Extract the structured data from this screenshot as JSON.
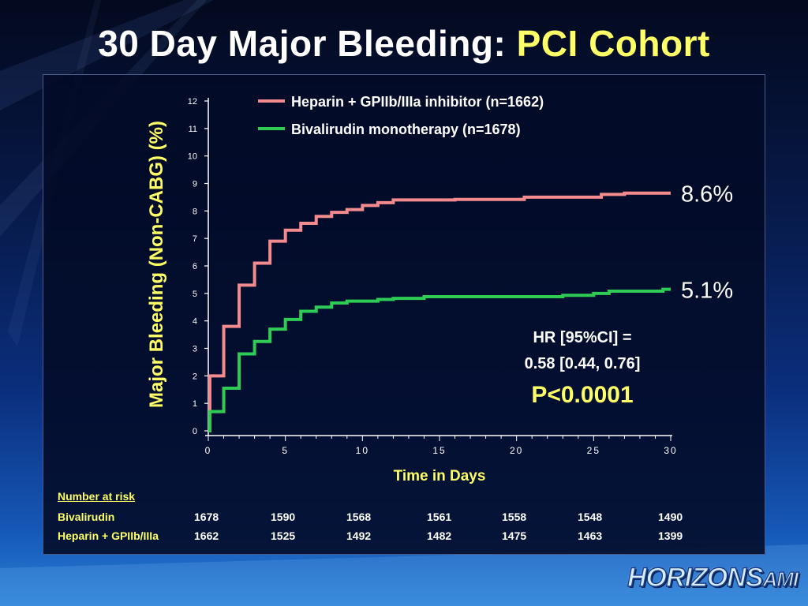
{
  "slide": {
    "title_main": "30 Day Major Bleeding:",
    "title_accent": "PCI Cohort"
  },
  "chart_data": {
    "type": "line",
    "subtype": "kaplan-meier step",
    "xlabel": "Time in Days",
    "ylabel": "Major Bleeding (Non-CABG) (%)",
    "xlim": [
      0,
      30
    ],
    "ylim": [
      0,
      12
    ],
    "x_ticks": [
      "0",
      "5",
      "10",
      "15",
      "20",
      "25",
      "30"
    ],
    "y_ticks": [
      "0",
      "1",
      "2",
      "3",
      "4",
      "5",
      "6",
      "7",
      "8",
      "9",
      "10",
      "11",
      "12"
    ],
    "grid": false,
    "legend_position": "top",
    "series": [
      {
        "name": "Heparin + GPIIb/IIIa inhibitor (n=1662)",
        "color": "#f28a8e",
        "end_label": "8.6%",
        "points": [
          [
            0,
            0
          ],
          [
            0.1,
            2.0
          ],
          [
            1,
            3.8
          ],
          [
            2,
            5.3
          ],
          [
            3,
            6.1
          ],
          [
            4,
            6.9
          ],
          [
            5,
            7.3
          ],
          [
            6,
            7.55
          ],
          [
            7,
            7.8
          ],
          [
            8,
            7.95
          ],
          [
            9,
            8.05
          ],
          [
            10,
            8.2
          ],
          [
            11,
            8.3
          ],
          [
            12,
            8.4
          ],
          [
            16,
            8.42
          ],
          [
            20.5,
            8.5
          ],
          [
            25.5,
            8.6
          ],
          [
            27,
            8.65
          ],
          [
            30,
            8.65
          ]
        ]
      },
      {
        "name": "Bivalirudin monotherapy (n=1678)",
        "color": "#2ecc55",
        "end_label": "5.1%",
        "points": [
          [
            0,
            0
          ],
          [
            0.1,
            0.7
          ],
          [
            1,
            1.55
          ],
          [
            2,
            2.8
          ],
          [
            3,
            3.25
          ],
          [
            4,
            3.7
          ],
          [
            5,
            4.05
          ],
          [
            6,
            4.35
          ],
          [
            7,
            4.5
          ],
          [
            8,
            4.65
          ],
          [
            9,
            4.72
          ],
          [
            11,
            4.78
          ],
          [
            12,
            4.82
          ],
          [
            14,
            4.88
          ],
          [
            23,
            4.93
          ],
          [
            25,
            5.0
          ],
          [
            26,
            5.08
          ],
          [
            29.5,
            5.15
          ],
          [
            30,
            5.15
          ]
        ]
      }
    ],
    "annotation": {
      "hr_line1": "HR [95%CI] =",
      "hr_line2": "0.58 [0.44, 0.76]",
      "p_value": "P<0.0001"
    }
  },
  "risk_table": {
    "header": "Number at risk",
    "rows": [
      {
        "label": "Bivalirudin",
        "values": [
          "1678",
          "1590",
          "1568",
          "1561",
          "1558",
          "1548",
          "1490"
        ]
      },
      {
        "label": "Heparin + GPIIb/IIIa",
        "values": [
          "1662",
          "1525",
          "1492",
          "1482",
          "1475",
          "1463",
          "1399"
        ]
      }
    ]
  },
  "logo": {
    "main": "HORIZONS",
    "suffix": "AMI"
  }
}
